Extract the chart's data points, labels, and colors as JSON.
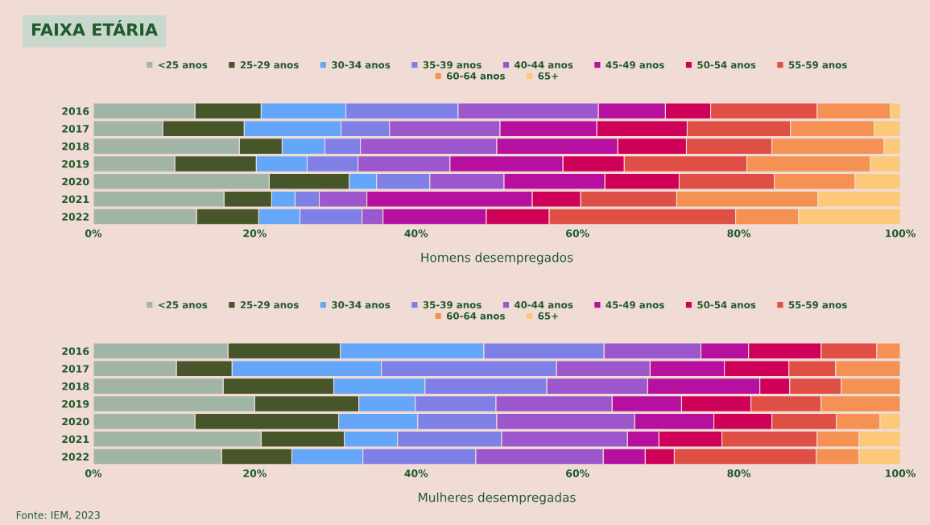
{
  "chart_data": [
    {
      "type": "bar",
      "orientation": "horizontal",
      "stacked": true,
      "title": "FAIXA ETÁRIA",
      "xlabel": "Homens desempregados",
      "legend": "top",
      "categories": [
        "2016",
        "2017",
        "2018",
        "2019",
        "2020",
        "2021",
        "2022"
      ],
      "xlim": [
        0,
        100
      ],
      "xticks": [
        {
          "value": 0,
          "label": "0%"
        },
        {
          "value": 20,
          "label": "20%"
        },
        {
          "value": 40,
          "label": "40%"
        },
        {
          "value": 60,
          "label": "60%"
        },
        {
          "value": 80,
          "label": "80%"
        },
        {
          "value": 100,
          "label": "100%"
        }
      ],
      "series": [
        {
          "name": "<25 anos",
          "color": "#a0b5a5",
          "values": [
            12.6,
            8.6,
            18.1,
            10.1,
            21.8,
            16.2,
            12.8
          ]
        },
        {
          "name": "25-29 anos",
          "color": "#46552a",
          "values": [
            8.2,
            10.1,
            5.3,
            10.1,
            9.9,
            5.9,
            7.7
          ]
        },
        {
          "name": "30-34 anos",
          "color": "#64a6fa",
          "values": [
            10.5,
            12.0,
            5.3,
            6.3,
            3.4,
            2.9,
            5.1
          ]
        },
        {
          "name": "35-39 anos",
          "color": "#7f80e6",
          "values": [
            13.9,
            6.0,
            4.4,
            6.3,
            6.6,
            3.0,
            7.7
          ]
        },
        {
          "name": "40-44 anos",
          "color": "#9b57cb",
          "values": [
            17.4,
            13.7,
            16.9,
            11.4,
            9.2,
            5.9,
            2.6
          ]
        },
        {
          "name": "45-49 anos",
          "color": "#b8109e",
          "values": [
            8.3,
            12.0,
            15.0,
            14.0,
            12.5,
            20.5,
            12.8
          ]
        },
        {
          "name": "50-54 anos",
          "color": "#cf0058",
          "values": [
            5.6,
            11.2,
            8.5,
            7.6,
            9.2,
            6.0,
            7.8
          ]
        },
        {
          "name": "55-59 anos",
          "color": "#df4f45",
          "values": [
            13.2,
            12.8,
            10.6,
            15.2,
            11.8,
            11.9,
            23.1
          ]
        },
        {
          "name": "60-64 anos",
          "color": "#f59152",
          "values": [
            9.1,
            10.4,
            13.9,
            15.3,
            10.0,
            17.5,
            7.8
          ]
        },
        {
          "name": "65+",
          "color": "#fdc878",
          "values": [
            1.2,
            3.2,
            2.0,
            3.7,
            5.6,
            10.2,
            12.6
          ]
        }
      ]
    },
    {
      "type": "bar",
      "orientation": "horizontal",
      "stacked": true,
      "xlabel": "Mulheres desempregadas",
      "legend": "top",
      "categories": [
        "2016",
        "2017",
        "2018",
        "2019",
        "2020",
        "2021",
        "2022"
      ],
      "xlim": [
        0,
        100
      ],
      "xticks": [
        {
          "value": 0,
          "label": "0%"
        },
        {
          "value": 20,
          "label": "20%"
        },
        {
          "value": 40,
          "label": "40%"
        },
        {
          "value": 60,
          "label": "60%"
        },
        {
          "value": 80,
          "label": "80%"
        },
        {
          "value": 100,
          "label": "100%"
        }
      ],
      "annotations": [
        "Fonte: IEM, 2023"
      ],
      "series": [
        {
          "name": "<25 anos",
          "color": "#a0b5a5",
          "values": [
            16.7,
            10.3,
            16.1,
            20.0,
            12.6,
            20.8,
            15.9
          ]
        },
        {
          "name": "25-29 anos",
          "color": "#46552a",
          "values": [
            13.9,
            6.9,
            13.7,
            12.9,
            17.8,
            10.3,
            8.7
          ]
        },
        {
          "name": "30-34 anos",
          "color": "#64a6fa",
          "values": [
            17.8,
            18.5,
            11.3,
            7.0,
            9.8,
            6.6,
            8.8
          ]
        },
        {
          "name": "35-39 anos",
          "color": "#7f80e6",
          "values": [
            14.9,
            21.7,
            15.1,
            10.0,
            9.8,
            12.9,
            14.0
          ]
        },
        {
          "name": "40-44 anos",
          "color": "#9b57cb",
          "values": [
            12.0,
            11.6,
            12.5,
            14.4,
            17.1,
            15.6,
            15.8
          ]
        },
        {
          "name": "45-49 anos",
          "color": "#b8109e",
          "values": [
            5.9,
            9.2,
            13.9,
            8.6,
            9.8,
            3.9,
            5.2
          ]
        },
        {
          "name": "50-54 anos",
          "color": "#cf0058",
          "values": [
            9.0,
            8.0,
            3.7,
            8.6,
            7.2,
            7.8,
            3.6
          ]
        },
        {
          "name": "55-59 anos",
          "color": "#df4f45",
          "values": [
            6.9,
            5.8,
            6.4,
            8.7,
            8.0,
            11.8,
            17.6
          ]
        },
        {
          "name": "60-64 anos",
          "color": "#f59152",
          "values": [
            2.9,
            8.0,
            7.3,
            9.8,
            5.4,
            5.2,
            5.3
          ]
        },
        {
          "name": "65+",
          "color": "#fdc878",
          "values": [
            null,
            null,
            null,
            null,
            2.5,
            5.1,
            5.1
          ]
        }
      ]
    }
  ]
}
